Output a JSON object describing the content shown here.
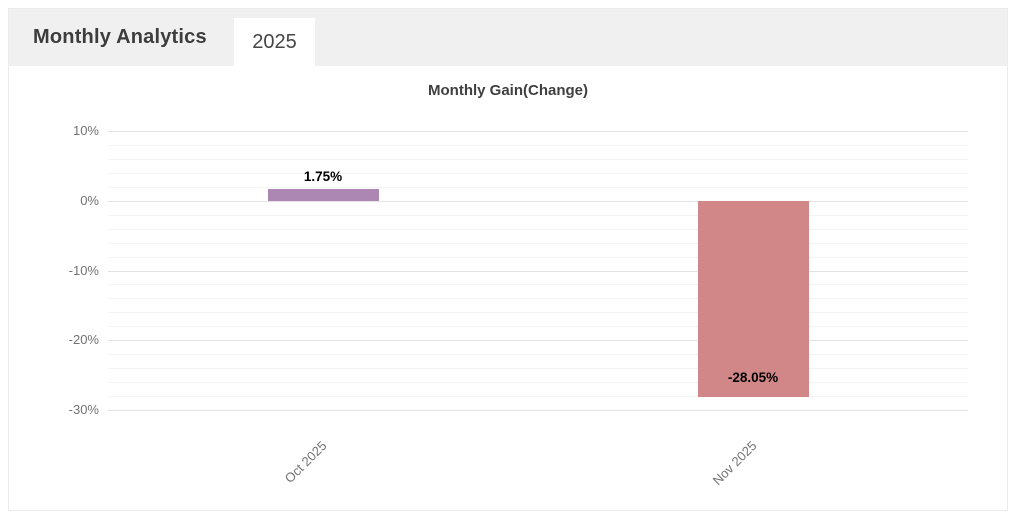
{
  "header": {
    "title": "Monthly Analytics",
    "tabs": [
      {
        "label": "2025",
        "active": true
      }
    ]
  },
  "chart_data": {
    "type": "bar",
    "title": "Monthly Gain(Change)",
    "categories": [
      "Oct 2025",
      "Nov 2025"
    ],
    "values": [
      1.75,
      -28.05
    ],
    "value_labels": [
      "1.75%",
      "-28.05%"
    ],
    "bar_colors": [
      "#ad87b3",
      "#d18787"
    ],
    "xlabel": "",
    "ylabel": "",
    "yaxis": {
      "min": -30,
      "max": 10,
      "major_step": 10,
      "minor_step": 2,
      "tick_labels": [
        "10%",
        "0%",
        "-10%",
        "-20%",
        "-30%"
      ]
    },
    "grid": true,
    "legend_position": "none",
    "grid_major_color": "#e3e3e3",
    "grid_minor_color": "#f3f3f3",
    "axis_text_color": "#737373"
  }
}
